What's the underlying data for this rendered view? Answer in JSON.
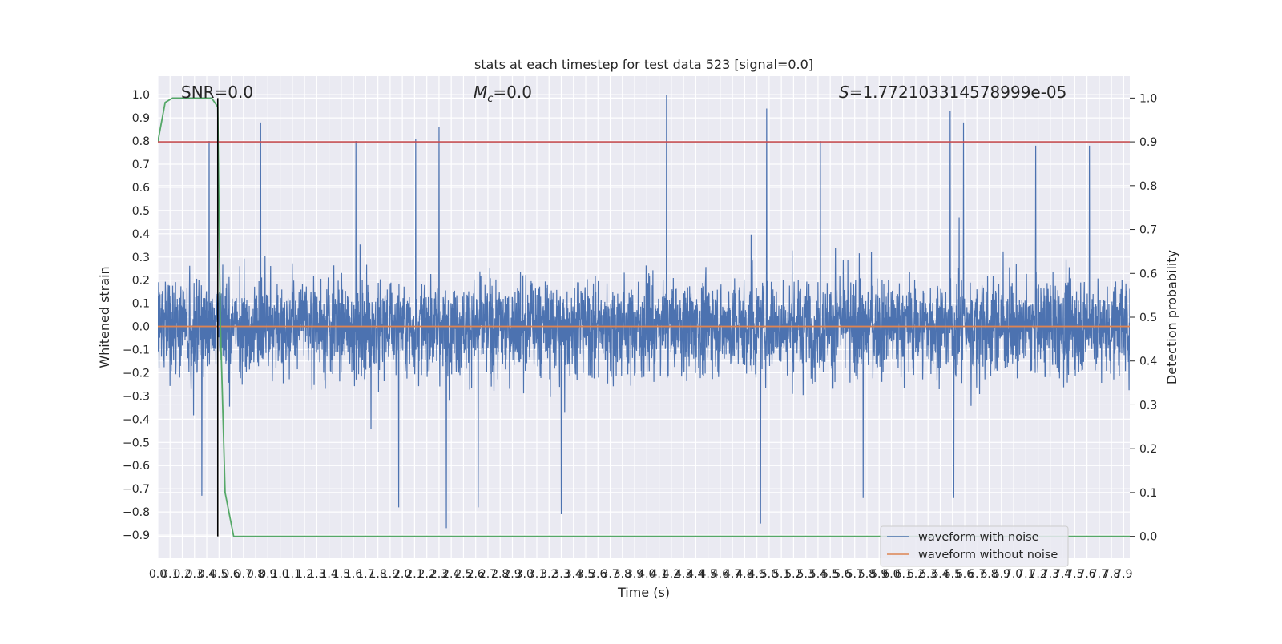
{
  "chart_data": {
    "type": "line",
    "title": "stats at each timestep for test data 523 [signal=0.0]",
    "xlabel": "Time (s)",
    "ylabel": "Whitened strain",
    "y2label": "Detection probability",
    "xlim": [
      0.0,
      7.95
    ],
    "ylim": [
      -1.0,
      1.08
    ],
    "y2lim": [
      -0.05,
      1.05
    ],
    "x_ticks": [
      0.0,
      0.1,
      0.2,
      0.3,
      0.4,
      0.5,
      0.6,
      0.7,
      0.8,
      0.9,
      1.0,
      1.1,
      1.2,
      1.3,
      1.4,
      1.5,
      1.6,
      1.7,
      1.8,
      1.9,
      2.0,
      2.1,
      2.2,
      2.3,
      2.4,
      2.5,
      2.6,
      2.7,
      2.8,
      2.9,
      3.0,
      3.1,
      3.2,
      3.3,
      3.4,
      3.5,
      3.6,
      3.7,
      3.8,
      3.9,
      4.0,
      4.1,
      4.2,
      4.3,
      4.4,
      4.5,
      4.6,
      4.7,
      4.8,
      4.9,
      5.0,
      5.1,
      5.2,
      5.3,
      5.4,
      5.5,
      5.6,
      5.7,
      5.8,
      5.9,
      6.0,
      6.1,
      6.2,
      6.3,
      6.4,
      6.5,
      6.6,
      6.7,
      6.8,
      6.9,
      7.0,
      7.1,
      7.2,
      7.3,
      7.4,
      7.5,
      7.6,
      7.7,
      7.8,
      7.9
    ],
    "y_ticks": [
      1.0,
      0.9,
      0.8,
      0.7,
      0.6,
      0.5,
      0.4,
      0.3,
      0.2,
      0.1,
      0.0,
      -0.1,
      -0.2,
      -0.3,
      -0.4,
      -0.5,
      -0.6,
      -0.7,
      -0.8,
      -0.9
    ],
    "y2_ticks": [
      1.0,
      0.9,
      0.8,
      0.7,
      0.6,
      0.5,
      0.4,
      0.3,
      0.2,
      0.1,
      0.0
    ],
    "grid": true,
    "legend_position": "lower-right",
    "annotations": {
      "snr": "SNR=0.0",
      "mc_symbol": "M",
      "mc_sub": "c",
      "mc_value": "=0.0",
      "s_symbol": "S",
      "s_value": "=1.772103314578999e-05"
    },
    "series": [
      {
        "name": "waveform with noise",
        "axis": "left",
        "color": "#4c72b0",
        "description_values": "dense noise trace, approx. range -0.87 to 1.0",
        "peaks": [
          {
            "x": 0.42,
            "y": 0.8
          },
          {
            "x": 0.84,
            "y": 0.88
          },
          {
            "x": 1.62,
            "y": 0.8
          },
          {
            "x": 2.11,
            "y": 0.81
          },
          {
            "x": 2.3,
            "y": 0.86
          },
          {
            "x": 4.16,
            "y": 1.0
          },
          {
            "x": 4.98,
            "y": 0.94
          },
          {
            "x": 5.42,
            "y": 0.8
          },
          {
            "x": 6.48,
            "y": 0.93
          },
          {
            "x": 6.59,
            "y": 0.88
          },
          {
            "x": 7.18,
            "y": 0.78
          },
          {
            "x": 7.62,
            "y": 0.78
          }
        ],
        "troughs": [
          {
            "x": 0.36,
            "y": -0.73
          },
          {
            "x": 1.97,
            "y": -0.78
          },
          {
            "x": 2.36,
            "y": -0.87
          },
          {
            "x": 2.62,
            "y": -0.78
          },
          {
            "x": 3.3,
            "y": -0.81
          },
          {
            "x": 4.93,
            "y": -0.85
          },
          {
            "x": 5.77,
            "y": -0.74
          },
          {
            "x": 6.51,
            "y": -0.74
          }
        ],
        "typical_range": [
          -0.48,
          0.52
        ]
      },
      {
        "name": "waveform without noise",
        "axis": "left",
        "color": "#dd8452",
        "x": [
          0.0,
          7.95
        ],
        "y": [
          0.0,
          0.0
        ]
      }
    ],
    "extra_lines": [
      {
        "kind": "detection-probability",
        "axis": "right",
        "color": "#55a868",
        "x": [
          0.0,
          0.06,
          0.12,
          0.2,
          0.3,
          0.4,
          0.44,
          0.49,
          0.51,
          0.55,
          0.62,
          0.7,
          7.95
        ],
        "y": [
          0.9,
          0.99,
          1.0,
          1.0,
          1.0,
          1.0,
          1.0,
          0.98,
          0.5,
          0.1,
          0.0,
          0.0,
          0.0
        ]
      },
      {
        "kind": "threshold",
        "axis": "right",
        "color": "#c44e52",
        "y": 0.9
      },
      {
        "kind": "vertical-marker",
        "axis": "x",
        "color": "#000000",
        "x": 0.49
      }
    ]
  }
}
